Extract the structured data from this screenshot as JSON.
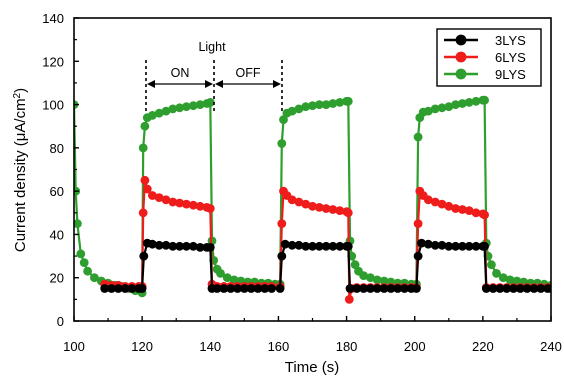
{
  "chart_data": {
    "type": "line",
    "xlabel": "Time (s)",
    "ylabel_main": "Current density (μA/cm",
    "ylabel_sup": "2",
    "ylabel_close": ")",
    "xlim": [
      100,
      240
    ],
    "ylim": [
      0,
      140
    ],
    "xticks": [
      100,
      120,
      140,
      160,
      180,
      200,
      220,
      240
    ],
    "yticks": [
      0,
      20,
      40,
      60,
      80,
      100,
      120,
      140
    ],
    "grid": false,
    "legend_position": "top-right",
    "annotations": {
      "light": "Light",
      "on": "ON",
      "off": "OFF"
    },
    "series": [
      {
        "name": "9LYS",
        "color": "#2e9e2e",
        "points": [
          [
            100,
            100
          ],
          [
            100.5,
            60
          ],
          [
            101,
            45
          ],
          [
            102,
            31
          ],
          [
            103,
            27
          ],
          [
            104,
            23
          ],
          [
            106,
            20
          ],
          [
            108,
            18.5
          ],
          [
            110,
            17.5
          ],
          [
            112,
            16.5
          ],
          [
            114,
            16
          ],
          [
            116,
            15
          ],
          [
            118,
            14
          ],
          [
            120,
            13
          ],
          [
            120.3,
            80
          ],
          [
            120.8,
            90
          ],
          [
            121.5,
            94
          ],
          [
            123,
            95
          ],
          [
            125,
            96
          ],
          [
            127,
            97
          ],
          [
            129,
            98
          ],
          [
            131,
            98.5
          ],
          [
            133,
            99
          ],
          [
            135,
            99.5
          ],
          [
            137,
            100
          ],
          [
            139,
            100.5
          ],
          [
            140,
            101
          ],
          [
            140.5,
            37
          ],
          [
            141,
            28
          ],
          [
            142,
            24
          ],
          [
            143,
            22
          ],
          [
            145,
            20
          ],
          [
            147,
            19
          ],
          [
            149,
            18.5
          ],
          [
            151,
            18
          ],
          [
            153,
            18
          ],
          [
            155,
            17.5
          ],
          [
            157,
            17.5
          ],
          [
            159,
            17
          ],
          [
            160.5,
            17
          ],
          [
            161,
            82
          ],
          [
            161.5,
            93
          ],
          [
            162.5,
            96
          ],
          [
            164,
            97
          ],
          [
            166,
            98
          ],
          [
            168,
            99
          ],
          [
            170,
            99.5
          ],
          [
            172,
            100
          ],
          [
            174,
            100
          ],
          [
            176,
            100.5
          ],
          [
            178,
            101
          ],
          [
            180,
            101.5
          ],
          [
            180.5,
            101.5
          ],
          [
            181,
            37
          ],
          [
            181.5,
            30
          ],
          [
            182.5,
            26
          ],
          [
            183.5,
            23
          ],
          [
            185,
            21
          ],
          [
            187,
            20
          ],
          [
            189,
            19
          ],
          [
            191,
            18.5
          ],
          [
            193,
            18
          ],
          [
            195,
            17.5
          ],
          [
            197,
            17.5
          ],
          [
            199,
            17
          ],
          [
            200.5,
            17
          ],
          [
            201,
            85
          ],
          [
            201.5,
            94
          ],
          [
            202.5,
            96.5
          ],
          [
            204,
            97
          ],
          [
            206,
            98
          ],
          [
            208,
            98.5
          ],
          [
            210,
            99
          ],
          [
            212,
            100
          ],
          [
            214,
            100.5
          ],
          [
            216,
            101
          ],
          [
            218,
            101.5
          ],
          [
            220,
            102
          ],
          [
            220.5,
            102
          ],
          [
            221,
            36
          ],
          [
            221.5,
            30
          ],
          [
            222.5,
            26
          ],
          [
            224,
            22
          ],
          [
            226,
            20
          ],
          [
            228,
            19
          ],
          [
            230,
            18.5
          ],
          [
            232,
            18
          ],
          [
            234,
            17.5
          ],
          [
            236,
            17.5
          ],
          [
            238,
            17
          ],
          [
            240,
            16.5
          ]
        ]
      },
      {
        "name": "6LYS",
        "color": "#ef1c1c",
        "points": [
          [
            109,
            17
          ],
          [
            111,
            16.5
          ],
          [
            113,
            16.5
          ],
          [
            115,
            16
          ],
          [
            117,
            16
          ],
          [
            119,
            16
          ],
          [
            120,
            16
          ],
          [
            120.3,
            50
          ],
          [
            120.8,
            65
          ],
          [
            121.5,
            61
          ],
          [
            123,
            58
          ],
          [
            125,
            57
          ],
          [
            127,
            56
          ],
          [
            129,
            55
          ],
          [
            131,
            54.5
          ],
          [
            133,
            54
          ],
          [
            135,
            53.5
          ],
          [
            137,
            53
          ],
          [
            139,
            52.5
          ],
          [
            140,
            52
          ],
          [
            140.5,
            17
          ],
          [
            142,
            16
          ],
          [
            144,
            16
          ],
          [
            146,
            16
          ],
          [
            148,
            16
          ],
          [
            150,
            16
          ],
          [
            152,
            16
          ],
          [
            154,
            16
          ],
          [
            156,
            16
          ],
          [
            158,
            16
          ],
          [
            160.5,
            16
          ],
          [
            161,
            45
          ],
          [
            161.5,
            60
          ],
          [
            162.5,
            58
          ],
          [
            164,
            56
          ],
          [
            166,
            55
          ],
          [
            168,
            54
          ],
          [
            170,
            53
          ],
          [
            172,
            52.5
          ],
          [
            174,
            52
          ],
          [
            176,
            51.5
          ],
          [
            178,
            51
          ],
          [
            180,
            50.5
          ],
          [
            180.5,
            50
          ],
          [
            180.8,
            10
          ],
          [
            181.5,
            15
          ],
          [
            183,
            15.5
          ],
          [
            185,
            15.5
          ],
          [
            187,
            15.5
          ],
          [
            189,
            15.5
          ],
          [
            191,
            15.5
          ],
          [
            193,
            15.5
          ],
          [
            195,
            15.5
          ],
          [
            197,
            15.5
          ],
          [
            199,
            15.5
          ],
          [
            200.5,
            15.5
          ],
          [
            201,
            45
          ],
          [
            201.5,
            60
          ],
          [
            202.5,
            58
          ],
          [
            204,
            56
          ],
          [
            206,
            55
          ],
          [
            208,
            54
          ],
          [
            210,
            53
          ],
          [
            212,
            52
          ],
          [
            214,
            51.5
          ],
          [
            216,
            51
          ],
          [
            218,
            50
          ],
          [
            220,
            49.5
          ],
          [
            220.5,
            49
          ],
          [
            221,
            15.5
          ],
          [
            223,
            15.5
          ],
          [
            225,
            15.5
          ],
          [
            227,
            15.5
          ],
          [
            229,
            15.5
          ],
          [
            231,
            15.5
          ],
          [
            233,
            15.5
          ],
          [
            235,
            15.5
          ],
          [
            237,
            15.5
          ],
          [
            239,
            15.5
          ],
          [
            240,
            15.5
          ]
        ]
      },
      {
        "name": "3LYS",
        "color": "#000000",
        "points": [
          [
            109,
            15
          ],
          [
            111,
            15
          ],
          [
            113,
            15
          ],
          [
            115,
            15
          ],
          [
            117,
            15
          ],
          [
            119,
            15
          ],
          [
            120,
            15
          ],
          [
            120.5,
            30
          ],
          [
            121.5,
            36
          ],
          [
            123,
            35.5
          ],
          [
            125,
            35
          ],
          [
            127,
            35
          ],
          [
            129,
            34.5
          ],
          [
            131,
            34.5
          ],
          [
            133,
            34.5
          ],
          [
            135,
            34.5
          ],
          [
            137,
            34
          ],
          [
            139,
            34
          ],
          [
            140,
            34
          ],
          [
            140.5,
            15
          ],
          [
            142,
            15
          ],
          [
            144,
            15
          ],
          [
            146,
            15
          ],
          [
            148,
            15
          ],
          [
            150,
            15
          ],
          [
            152,
            15
          ],
          [
            154,
            15
          ],
          [
            156,
            15
          ],
          [
            158,
            15
          ],
          [
            160.5,
            15
          ],
          [
            161,
            30
          ],
          [
            162,
            35.5
          ],
          [
            164,
            35
          ],
          [
            166,
            35
          ],
          [
            168,
            34.5
          ],
          [
            170,
            34.5
          ],
          [
            172,
            34.5
          ],
          [
            174,
            34.5
          ],
          [
            176,
            34.5
          ],
          [
            178,
            34.5
          ],
          [
            180,
            34.5
          ],
          [
            180.5,
            34.5
          ],
          [
            181,
            15
          ],
          [
            183,
            15
          ],
          [
            185,
            15
          ],
          [
            187,
            15
          ],
          [
            189,
            15
          ],
          [
            191,
            15
          ],
          [
            193,
            15
          ],
          [
            195,
            15
          ],
          [
            197,
            15
          ],
          [
            199,
            15
          ],
          [
            200.5,
            15
          ],
          [
            201,
            30
          ],
          [
            202,
            36
          ],
          [
            204,
            35.5
          ],
          [
            206,
            35
          ],
          [
            208,
            35
          ],
          [
            210,
            34.5
          ],
          [
            212,
            34.5
          ],
          [
            214,
            34.5
          ],
          [
            216,
            34.5
          ],
          [
            218,
            34.5
          ],
          [
            220,
            34.5
          ],
          [
            220.5,
            34.5
          ],
          [
            221,
            15
          ],
          [
            223,
            15
          ],
          [
            225,
            15
          ],
          [
            227,
            15
          ],
          [
            229,
            15
          ],
          [
            231,
            15
          ],
          [
            233,
            15
          ],
          [
            235,
            15
          ],
          [
            237,
            15
          ],
          [
            239,
            15
          ],
          [
            240,
            15
          ]
        ]
      }
    ],
    "legend": [
      {
        "name": "3LYS",
        "color": "#000000"
      },
      {
        "name": "6LYS",
        "color": "#ef1c1c"
      },
      {
        "name": "9LYS",
        "color": "#2e9e2e"
      }
    ]
  }
}
